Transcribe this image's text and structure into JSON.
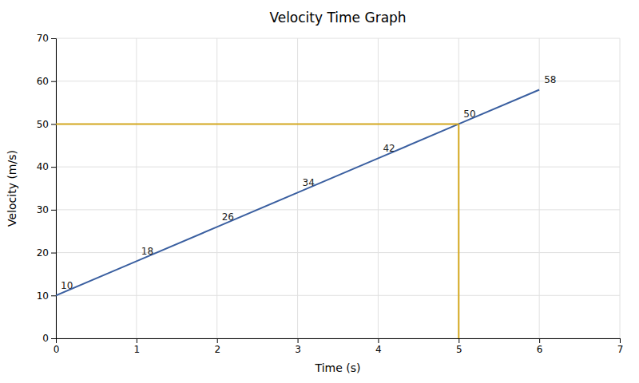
{
  "chart_data": {
    "type": "line",
    "title": "Velocity Time Graph",
    "xlabel": "Time (s)",
    "ylabel": "Velocity (m/s)",
    "xlim": [
      0,
      7
    ],
    "ylim": [
      0,
      70
    ],
    "xticks": [
      0,
      1,
      2,
      3,
      4,
      5,
      6,
      7
    ],
    "yticks": [
      0,
      10,
      20,
      30,
      40,
      50,
      60,
      70
    ],
    "grid": true,
    "series": [
      {
        "x": [
          0,
          1,
          2,
          3,
          4,
          5,
          6
        ],
        "values": [
          10,
          18,
          26,
          34,
          42,
          50,
          58
        ],
        "color": "#3A5FA0",
        "data_labels": true
      },
      {
        "x": [
          0,
          5
        ],
        "values": [
          50,
          50
        ],
        "color": "#D4A820"
      },
      {
        "x": [
          5,
          5
        ],
        "values": [
          0,
          50
        ],
        "color": "#D4A820"
      }
    ]
  }
}
